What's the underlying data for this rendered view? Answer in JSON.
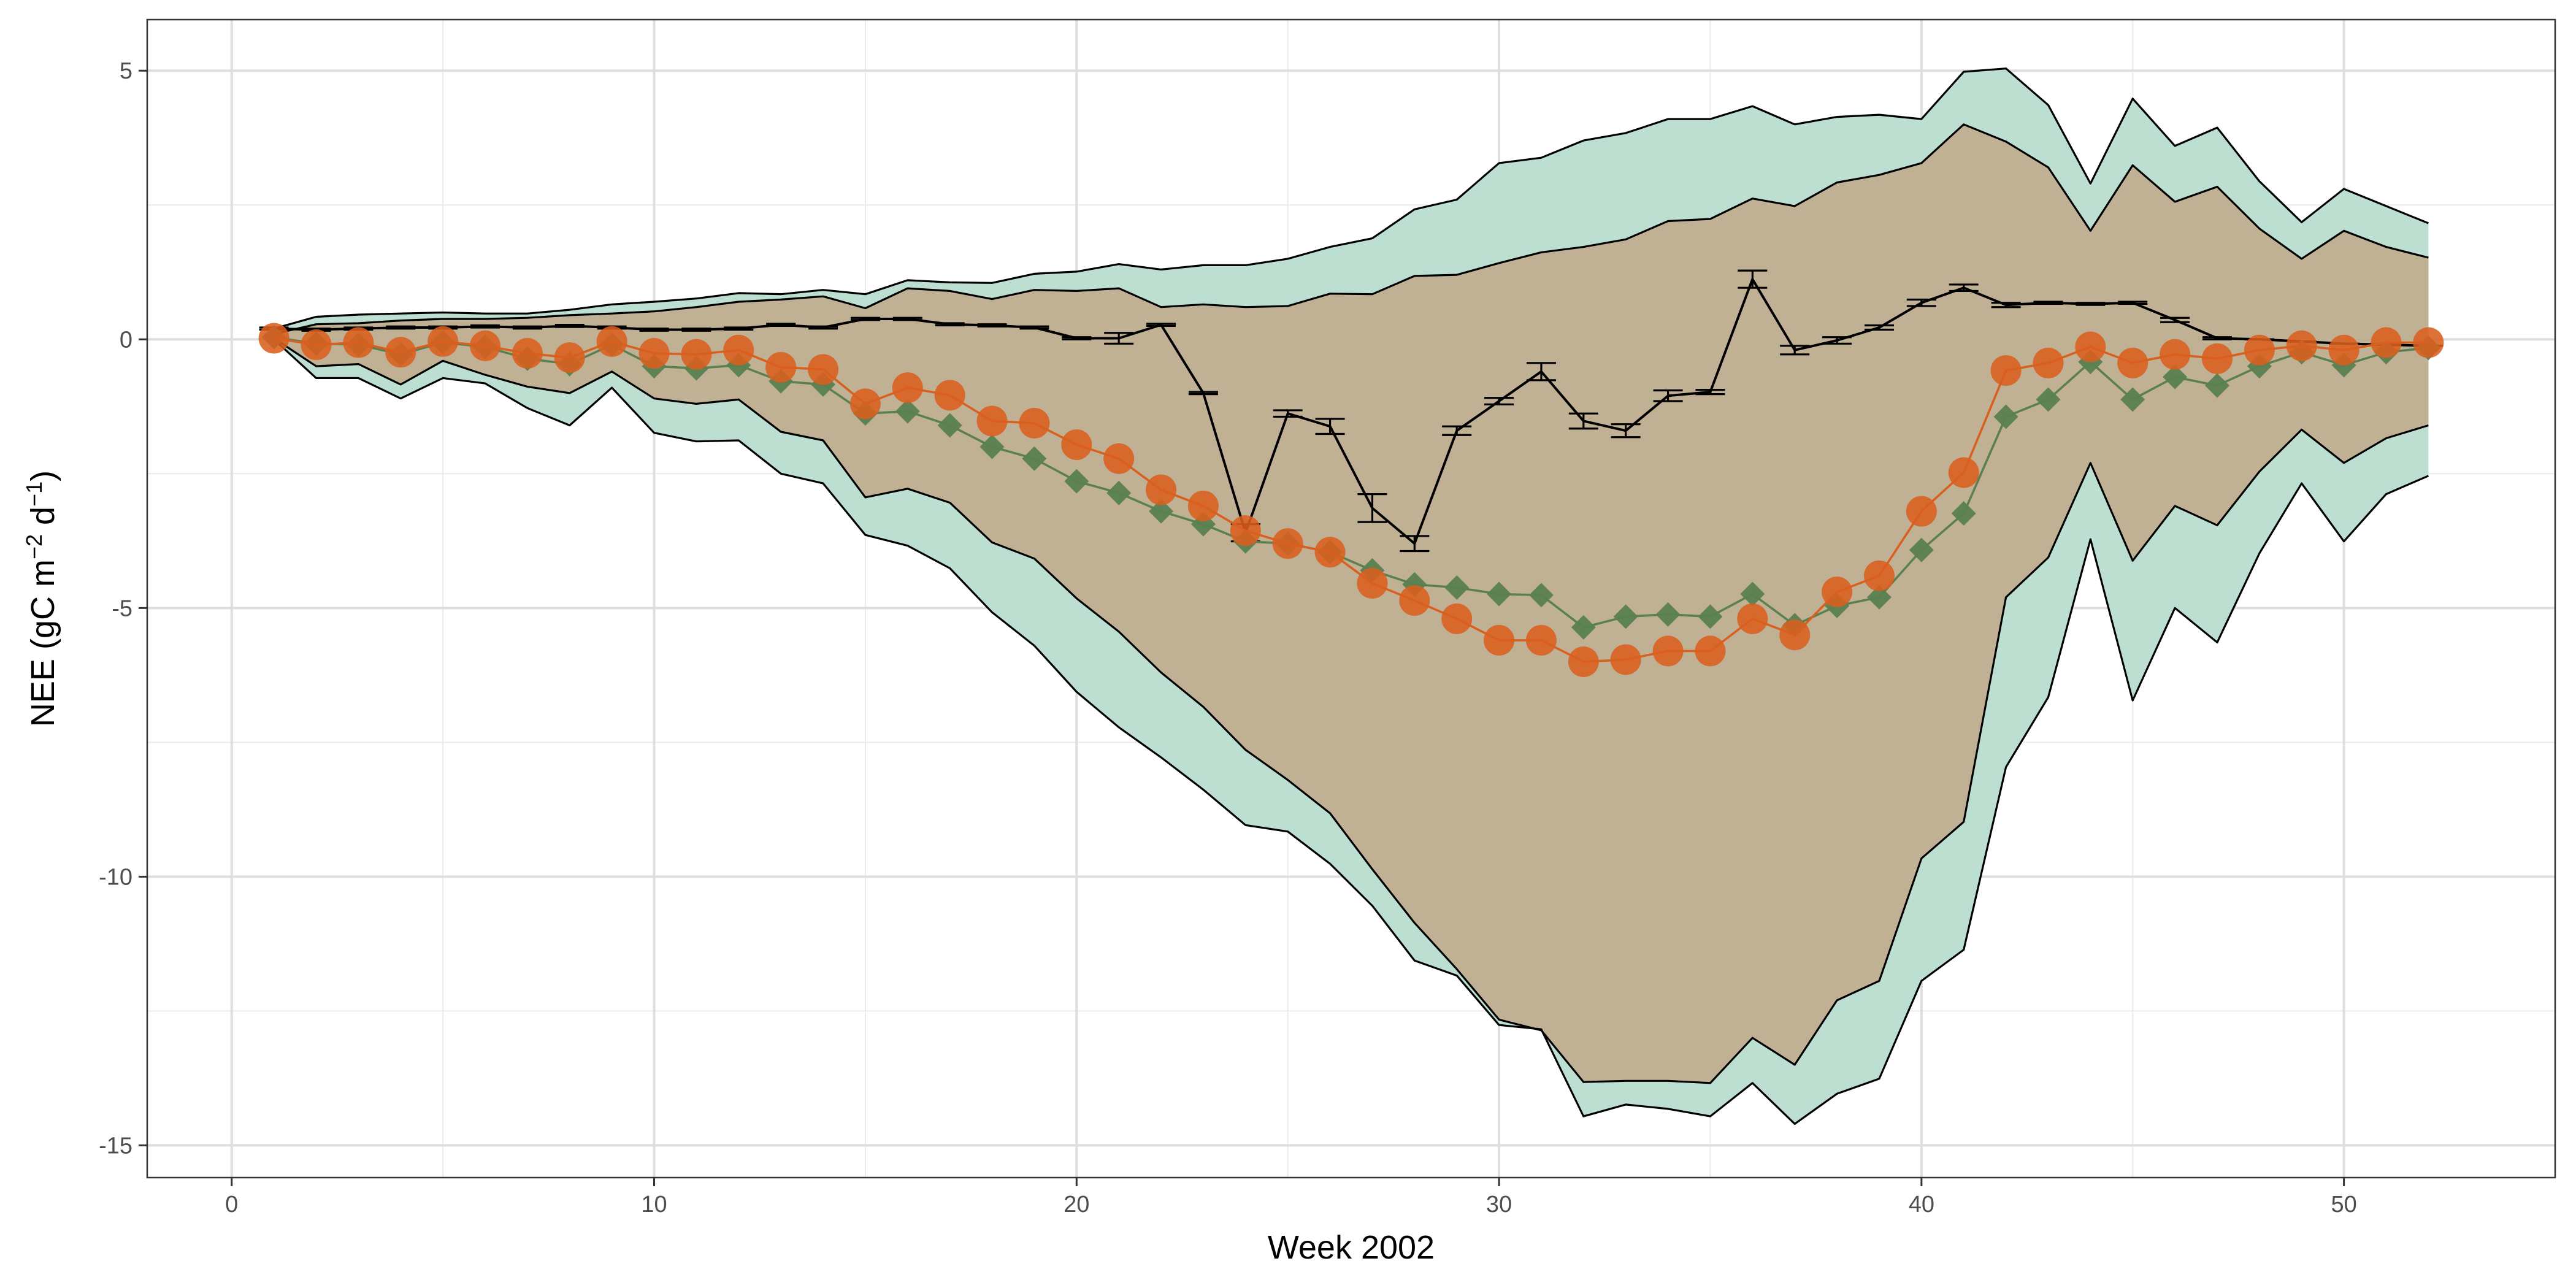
{
  "chart_data": {
    "type": "line",
    "title": "",
    "xlabel": "Week 2002",
    "ylabel_main": "NEE (gC m",
    "ylabel_sup1": "−2",
    "ylabel_mid": " d",
    "ylabel_sup2": "−1",
    "ylabel_end": ")",
    "xlim": [
      -2,
      55
    ],
    "ylim": [
      -15.6,
      5.95
    ],
    "x_ticks": [
      0,
      10,
      20,
      30,
      40,
      50
    ],
    "y_ticks": [
      -15,
      -10,
      -5,
      0,
      5
    ],
    "x_tick_labels": [
      "0",
      "10",
      "20",
      "30",
      "40",
      "50"
    ],
    "y_tick_labels": [
      "-15",
      "-10",
      "-5",
      "0",
      "5"
    ],
    "grid": true,
    "weeks": [
      1,
      2,
      3,
      4,
      5,
      6,
      7,
      8,
      9,
      10,
      11,
      12,
      13,
      14,
      15,
      16,
      17,
      18,
      19,
      20,
      21,
      22,
      23,
      24,
      25,
      26,
      27,
      28,
      29,
      30,
      31,
      32,
      33,
      34,
      35,
      36,
      37,
      38,
      39,
      40,
      41,
      42,
      43,
      44,
      45,
      46,
      47,
      48,
      49,
      50,
      51,
      52
    ],
    "colors": {
      "outer_band": "#bcdfd2",
      "inner_band": "#c0b094",
      "orange": "#d95f1e",
      "green": "#5a8050",
      "black": "#000000"
    },
    "bands": {
      "outer_upper": [
        0.2,
        0.42,
        0.46,
        0.48,
        0.5,
        0.48,
        0.48,
        0.55,
        0.65,
        0.7,
        0.76,
        0.86,
        0.84,
        0.92,
        0.84,
        1.1,
        1.06,
        1.05,
        1.22,
        1.26,
        1.4,
        1.3,
        1.38,
        1.38,
        1.5,
        1.72,
        1.88,
        2.42,
        2.6,
        3.28,
        3.38,
        3.7,
        3.84,
        4.1,
        4.1,
        4.34,
        4.0,
        4.14,
        4.18,
        4.1,
        4.98,
        5.04,
        4.36,
        2.9,
        4.48,
        3.6,
        3.94,
        2.94,
        2.18,
        2.8,
        2.48,
        2.16
      ],
      "inner_upper": [
        0.1,
        0.28,
        0.3,
        0.35,
        0.38,
        0.38,
        0.4,
        0.45,
        0.48,
        0.52,
        0.6,
        0.7,
        0.74,
        0.8,
        0.58,
        0.95,
        0.9,
        0.75,
        0.92,
        0.9,
        0.95,
        0.6,
        0.65,
        0.6,
        0.62,
        0.85,
        0.84,
        1.18,
        1.2,
        1.42,
        1.62,
        1.72,
        1.86,
        2.2,
        2.24,
        2.62,
        2.48,
        2.92,
        3.06,
        3.28,
        4.0,
        3.68,
        3.2,
        2.02,
        3.24,
        2.56,
        2.84,
        2.06,
        1.5,
        2.02,
        1.72,
        1.52
      ],
      "inner_lower": [
        0.02,
        -0.5,
        -0.46,
        -0.84,
        -0.4,
        -0.66,
        -0.88,
        -1.0,
        -0.6,
        -1.1,
        -1.2,
        -1.12,
        -1.72,
        -1.88,
        -2.94,
        -2.78,
        -3.04,
        -3.78,
        -4.08,
        -4.82,
        -5.44,
        -6.2,
        -6.84,
        -7.64,
        -8.2,
        -8.82,
        -9.86,
        -10.86,
        -11.72,
        -12.66,
        -12.86,
        -13.82,
        -13.8,
        -13.8,
        -13.84,
        -13.0,
        -13.5,
        -12.3,
        -11.94,
        -9.66,
        -8.98,
        -4.8,
        -4.06,
        -2.3,
        -4.12,
        -3.1,
        -3.46,
        -2.46,
        -1.68,
        -2.3,
        -1.84,
        -1.6
      ],
      "outer_lower": [
        0.0,
        -0.72,
        -0.72,
        -1.1,
        -0.72,
        -0.82,
        -1.28,
        -1.6,
        -0.9,
        -1.74,
        -1.9,
        -1.88,
        -2.5,
        -2.68,
        -3.64,
        -3.84,
        -4.26,
        -5.08,
        -5.7,
        -6.56,
        -7.22,
        -7.78,
        -8.38,
        -9.04,
        -9.16,
        -9.76,
        -10.54,
        -11.56,
        -11.84,
        -12.76,
        -12.84,
        -14.46,
        -14.24,
        -14.32,
        -14.46,
        -13.84,
        -14.6,
        -14.04,
        -13.76,
        -11.94,
        -11.36,
        -7.96,
        -6.66,
        -3.72,
        -6.72,
        -5.0,
        -5.64,
        -3.98,
        -2.68,
        -3.76,
        -2.88,
        -2.54
      ]
    },
    "series": [
      {
        "marker": "circle",
        "color": "orange",
        "values": [
          0.02,
          -0.1,
          -0.06,
          -0.24,
          -0.04,
          -0.12,
          -0.26,
          -0.34,
          -0.04,
          -0.26,
          -0.28,
          -0.2,
          -0.52,
          -0.56,
          -1.2,
          -0.9,
          -1.04,
          -1.52,
          -1.56,
          -1.96,
          -2.22,
          -2.8,
          -3.1,
          -3.56,
          -3.8,
          -3.96,
          -4.54,
          -4.86,
          -5.2,
          -5.6,
          -5.6,
          -6.0,
          -5.96,
          -5.8,
          -5.8,
          -5.2,
          -5.5,
          -4.7,
          -4.4,
          -3.2,
          -2.48,
          -0.58,
          -0.44,
          -0.14,
          -0.44,
          -0.28,
          -0.36,
          -0.2,
          -0.12,
          -0.2,
          -0.06,
          -0.06
        ]
      },
      {
        "marker": "diamond",
        "color": "green",
        "values": [
          0.04,
          -0.08,
          -0.1,
          -0.28,
          -0.06,
          -0.14,
          -0.36,
          -0.46,
          -0.1,
          -0.5,
          -0.54,
          -0.48,
          -0.78,
          -0.84,
          -1.38,
          -1.34,
          -1.6,
          -2.0,
          -2.22,
          -2.64,
          -2.86,
          -3.2,
          -3.44,
          -3.76,
          -3.8,
          -3.96,
          -4.3,
          -4.56,
          -4.62,
          -4.74,
          -4.76,
          -5.36,
          -5.16,
          -5.12,
          -5.16,
          -4.74,
          -5.32,
          -4.96,
          -4.8,
          -3.92,
          -3.24,
          -1.44,
          -1.12,
          -0.42,
          -1.12,
          -0.7,
          -0.86,
          -0.5,
          -0.24,
          -0.48,
          -0.24,
          -0.16
        ]
      },
      {
        "marker": "errorbar",
        "color": "black",
        "values": [
          0.2,
          0.18,
          0.2,
          0.22,
          0.22,
          0.24,
          0.22,
          0.25,
          0.22,
          0.18,
          0.18,
          0.2,
          0.27,
          0.22,
          0.38,
          0.38,
          0.28,
          0.26,
          0.22,
          0.02,
          0.02,
          0.27,
          -1.0,
          -3.6,
          -1.38,
          -1.62,
          -3.14,
          -3.8,
          -1.7,
          -1.15,
          -0.6,
          -1.52,
          -1.7,
          -1.05,
          -0.98,
          1.12,
          -0.2,
          -0.02,
          0.22,
          0.68,
          0.96,
          0.64,
          0.68,
          0.66,
          0.68,
          0.36,
          0.02,
          0.0,
          -0.04,
          -0.08,
          -0.1,
          -0.12
        ],
        "errors": [
          0.02,
          0.02,
          0.02,
          0.02,
          0.02,
          0.02,
          0.02,
          0.02,
          0.02,
          0.02,
          0.02,
          0.02,
          0.02,
          0.02,
          0.02,
          0.02,
          0.02,
          0.02,
          0.02,
          0.02,
          0.1,
          0.02,
          0.02,
          0.16,
          0.06,
          0.14,
          0.26,
          0.14,
          0.08,
          0.06,
          0.16,
          0.14,
          0.12,
          0.1,
          0.04,
          0.16,
          0.08,
          0.06,
          0.04,
          0.06,
          0.06,
          0.04,
          0.02,
          0.02,
          0.02,
          0.04,
          0.02,
          0.0,
          0.0,
          0.0,
          0.0,
          0.0
        ]
      }
    ]
  }
}
